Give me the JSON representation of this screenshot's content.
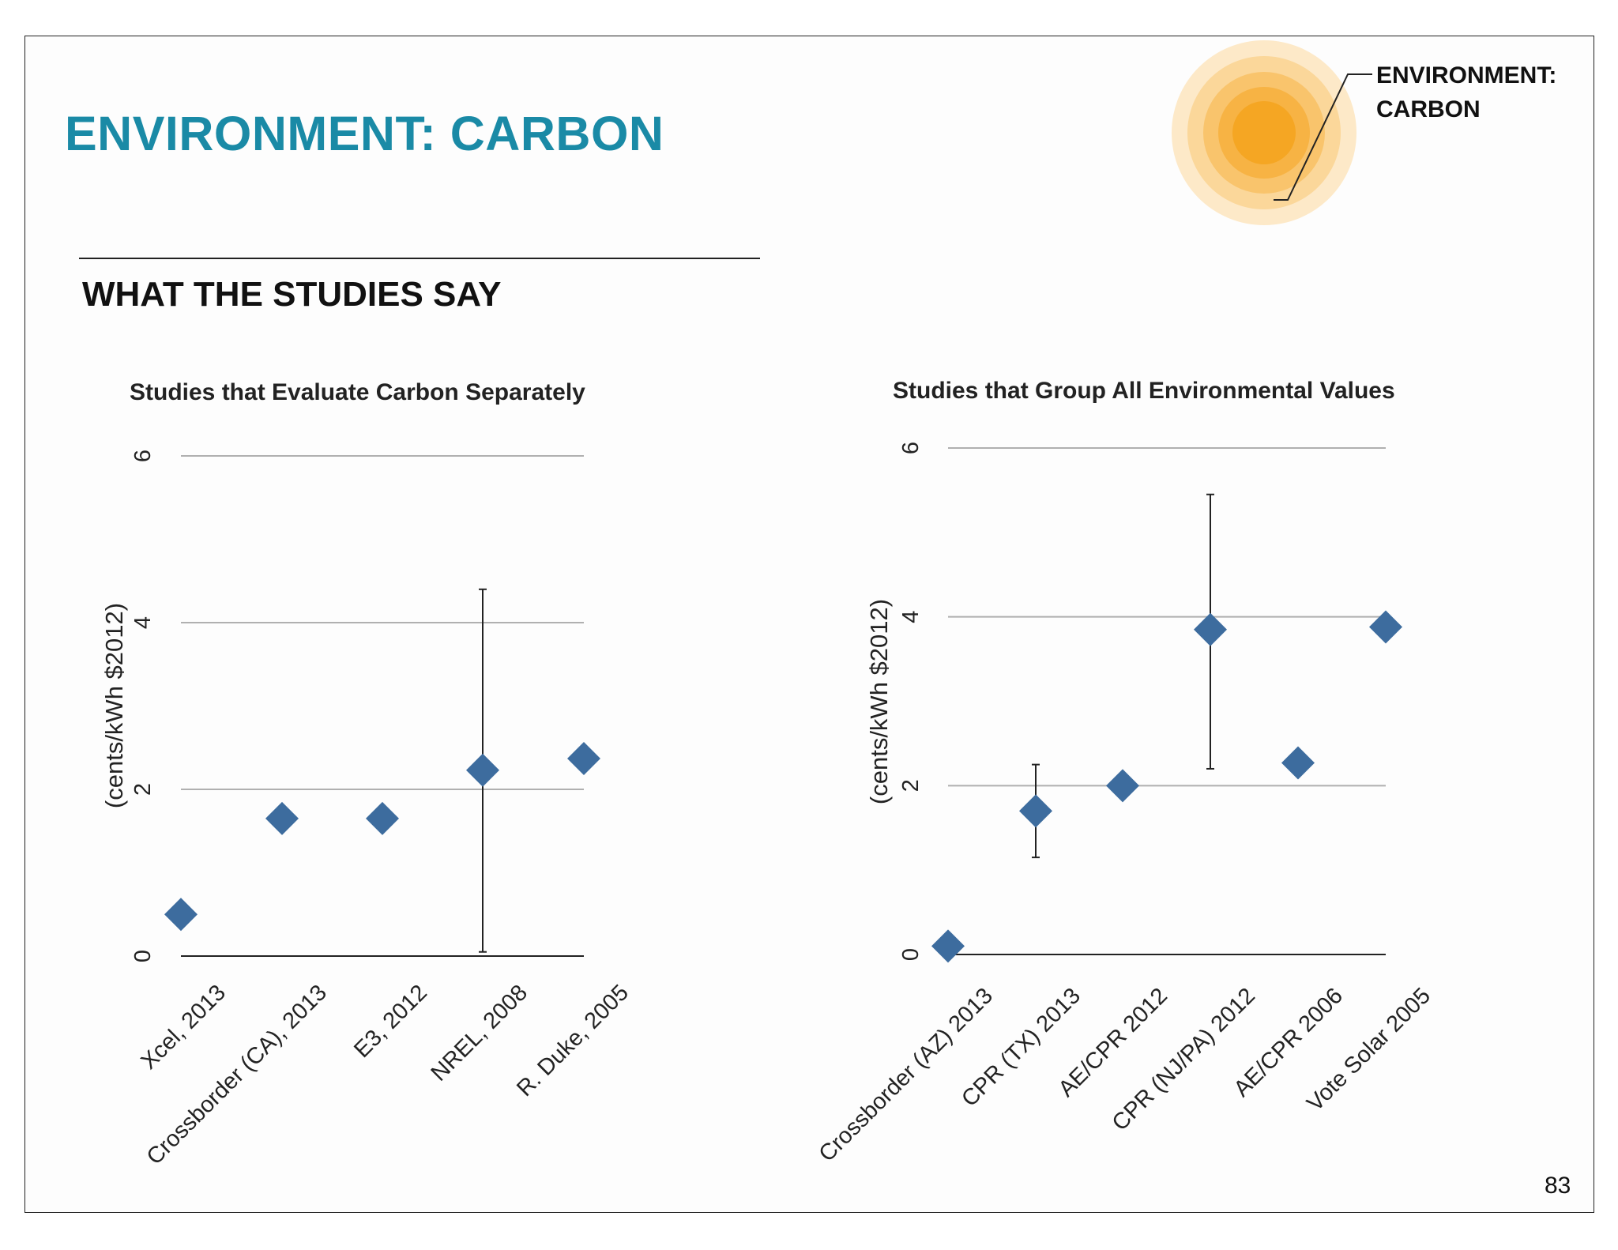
{
  "page": {
    "title": "ENVIRONMENT: CARBON",
    "section": "WHAT THE STUDIES SAY",
    "badge_line1": "ENVIRONMENT:",
    "badge_line2": "CARBON",
    "page_number": "83"
  },
  "colors": {
    "title": "#1a8aa6",
    "marker": "#3d6c9e",
    "grid": "#b0b0b0",
    "sun_core": "#f5a623"
  },
  "chart_data": [
    {
      "type": "scatter",
      "title": "Studies that Evaluate Carbon Separately",
      "ylabel": "(cents/kWh $2012)",
      "xlabel": "",
      "ylim": [
        0,
        6
      ],
      "yticks": [
        "0",
        "2",
        "4",
        "6"
      ],
      "categories": [
        "Xcel, 2013",
        "Crossborder (CA), 2013",
        "E3, 2012",
        "NREL, 2008",
        "R. Duke, 2005"
      ],
      "values": [
        0.5,
        1.65,
        1.65,
        2.23,
        2.37
      ],
      "error_low": [
        null,
        1.6,
        null,
        0.05,
        null
      ],
      "error_high": [
        null,
        1.72,
        null,
        4.4,
        null
      ],
      "grid": true
    },
    {
      "type": "scatter",
      "title": "Studies that Group All Environmental Values",
      "ylabel": "(cents/kWh $2012)",
      "xlabel": "",
      "ylim": [
        0,
        6
      ],
      "yticks": [
        "0",
        "2",
        "4",
        "6"
      ],
      "categories": [
        "Crossborder (AZ) 2013",
        "CPR (TX) 2013",
        "AE/CPR 2012",
        "CPR (NJ/PA) 2012",
        "AE/CPR 2006",
        "Vote Solar 2005"
      ],
      "values": [
        0.1,
        1.7,
        2.0,
        3.85,
        2.27,
        3.88
      ],
      "error_low": [
        null,
        1.15,
        null,
        2.2,
        null,
        null
      ],
      "error_high": [
        null,
        2.25,
        null,
        5.45,
        null,
        null
      ],
      "grid": true
    }
  ]
}
